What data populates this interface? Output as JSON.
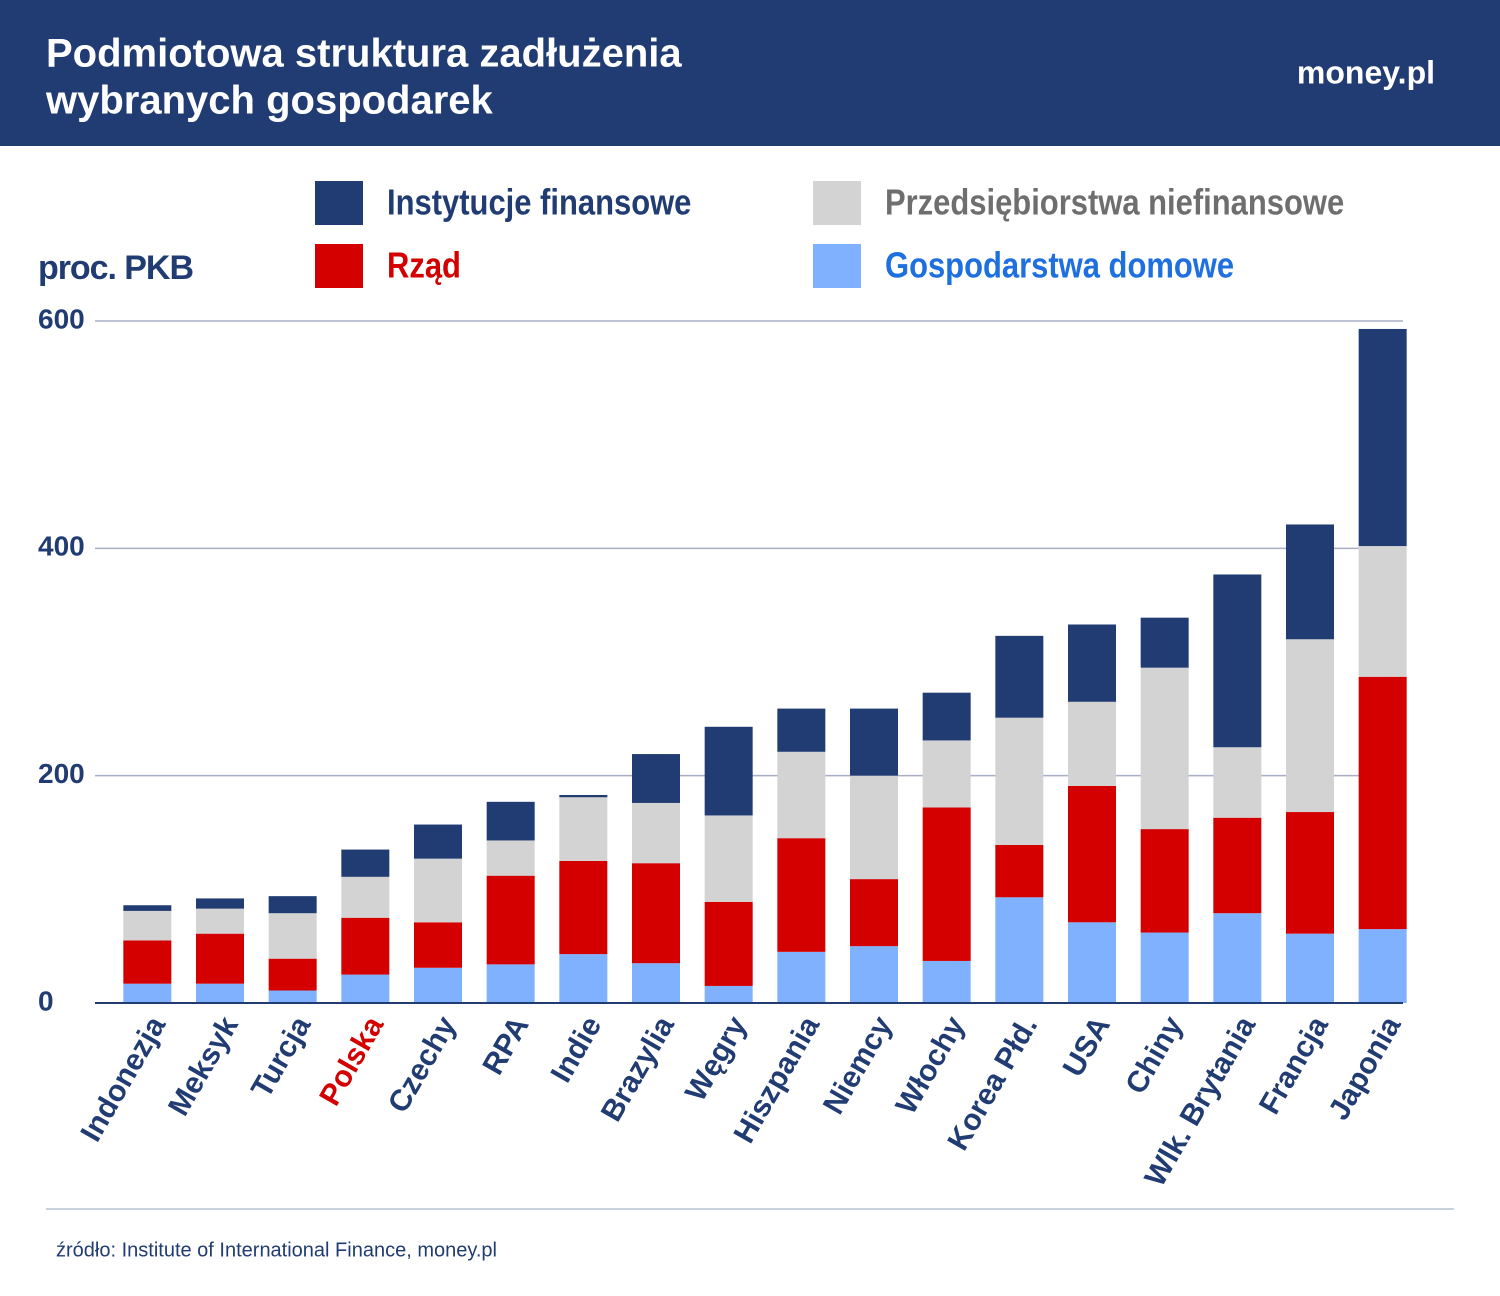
{
  "header": {
    "title_lines": [
      "Podmiotowa struktura zadłużenia",
      "wybranych gospodarek"
    ],
    "logo": "money.pl"
  },
  "chart_data": {
    "type": "stacked_bar",
    "y_label": "proc. PKB",
    "categories": [
      "Indonezja",
      "Meksyk",
      "Turcja",
      "Polska",
      "Czechy",
      "RPA",
      "Indie",
      "Brazylia",
      "Węgry",
      "Hiszpania",
      "Niemcy",
      "Włochy",
      "Korea Płd.",
      "USA",
      "Chiny",
      "Wlk. Brytania",
      "Francja",
      "Japonia"
    ],
    "category_label_colors": [
      "#213c72",
      "#213c72",
      "#213c72",
      "#d40000",
      "#213c72",
      "#213c72",
      "#213c72",
      "#213c72",
      "#213c72",
      "#213c72",
      "#213c72",
      "#213c72",
      "#213c72",
      "#213c72",
      "#213c72",
      "#213c72",
      "#213c72",
      "#213c72"
    ],
    "series": [
      {
        "name": "Gospodarstwa domowe",
        "color": "#80b1ff",
        "label_color": "#1e6fe0",
        "values": [
          17,
          17,
          11,
          25,
          31,
          34,
          43,
          35,
          15,
          45,
          50,
          37,
          93,
          71,
          62,
          79,
          61,
          65
        ]
      },
      {
        "name": "Rząd",
        "color": "#d40000",
        "label_color": "#d40000",
        "values": [
          38,
          44,
          28,
          50,
          40,
          78,
          82,
          88,
          74,
          100,
          59,
          135,
          46,
          120,
          91,
          84,
          107,
          222
        ]
      },
      {
        "name": "Przedsiębiorstwa niefinansowe",
        "color": "#d3d3d3",
        "label_color": "#6e6e6e",
        "values": [
          26,
          22,
          40,
          36,
          56,
          31,
          56,
          53,
          76,
          76,
          91,
          59,
          112,
          74,
          142,
          62,
          152,
          115
        ]
      },
      {
        "name": "Instytucje finansowe",
        "color": "#213c72",
        "label_color": "#213c72",
        "values": [
          5,
          9,
          15,
          24,
          30,
          34,
          2,
          43,
          78,
          38,
          59,
          42,
          72,
          68,
          44,
          152,
          101,
          191
        ]
      }
    ],
    "ylim": [
      0,
      600
    ],
    "yticks": [
      0,
      200,
      400,
      600
    ],
    "grid": true,
    "source": "źródło: Institute of International Finance, money.pl"
  }
}
